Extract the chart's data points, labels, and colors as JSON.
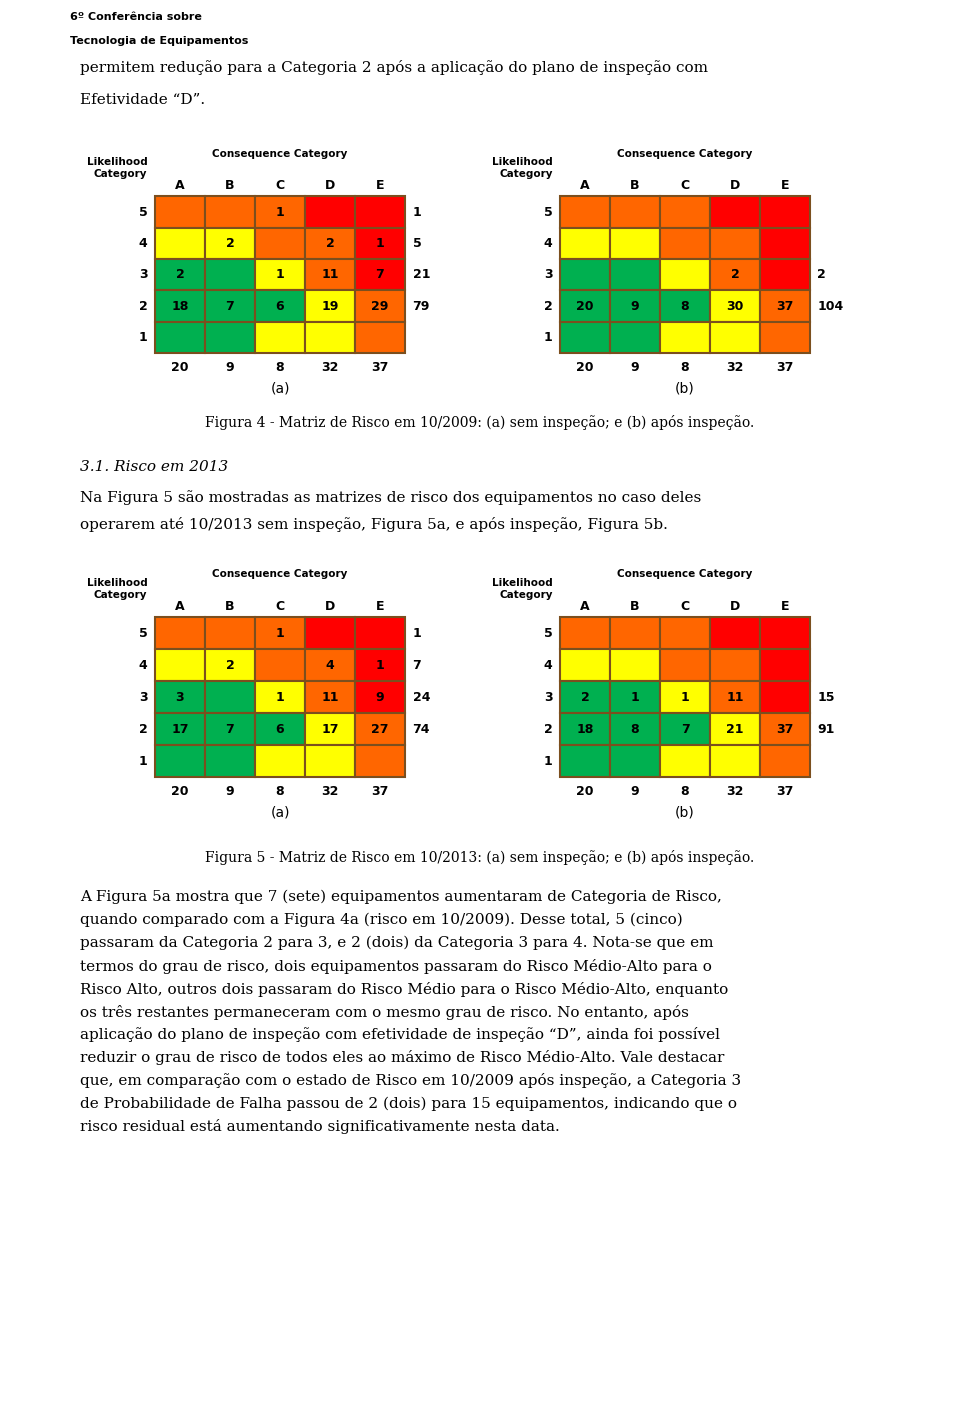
{
  "page_bg": "#ffffff",
  "header_logo_color": "#e07820",
  "header_text_line1": "6º Conferência sobre",
  "header_text_line2": "Tecnologia de Equipamentos",
  "intro_text": "permitem redução para a Categoria 2 após a aplicação do plano de inspeção com\nEfetividade “D”.",
  "section_title": "3.1. Risco em 2013",
  "section_body1": "Na Figura 5 são mostradas as matrizes de risco dos equipamentos no caso deles",
  "section_body2": "operarem até 10/2013 sem inspeção, Figura 5a, e após inspeção, Figura 5b.",
  "fig4_caption": "Figura 4 - Matriz de Risco em 10/2009: (a) sem inspeção; e (b) após inspeção.",
  "fig5_caption": "Figura 5 - Matriz de Risco em 10/2013: (a) sem inspeção; e (b) após inspeção.",
  "body_text_lines": [
    "A Figura 5a mostra que 7 (sete) equipamentos aumentaram de Categoria de Risco,",
    "quando comparado com a Figura 4a (risco em 10/2009). Desse total, 5 (cinco)",
    "passaram da Categoria 2 para 3, e 2 (dois) da Categoria 3 para 4. Nota-se que em",
    "termos do grau de risco, dois equipamentos passaram do Risco Médio-Alto para o",
    "Risco Alto, outros dois passaram do Risco Médio para o Risco Médio-Alto, enquanto",
    "os três restantes permaneceram com o mesmo grau de risco. No entanto, após",
    "aplicação do plano de inspeção com efetividade de inspeção “D”, ainda foi possível",
    "reduzir o grau de risco de todos eles ao máximo de Risco Médio-Alto. Vale destacar",
    "que, em comparação com o estado de Risco em 10/2009 após inspeção, a Categoria 3",
    "de Probabilidade de Falha passou de 2 (dois) para 15 equipamentos, indicando que o",
    "risco residual está aumentando significativamente nesta data."
  ],
  "colors": {
    "green": "#00b050",
    "yellow": "#ffff00",
    "orange": "#ff6600",
    "red": "#ff0000",
    "dark_orange": "#c55a11",
    "border": "#7b4f1e"
  },
  "fig4a": {
    "row_labels": [
      5,
      4,
      3,
      2,
      1
    ],
    "col_labels": [
      "A",
      "B",
      "C",
      "D",
      "E"
    ],
    "col_totals": [
      20,
      9,
      8,
      32,
      37
    ],
    "row_totals": [
      1,
      5,
      21,
      79,
      null
    ],
    "cell_colors": [
      [
        "orange",
        "orange",
        "orange",
        "red",
        "red"
      ],
      [
        "yellow",
        "yellow",
        "orange",
        "orange",
        "red"
      ],
      [
        "green",
        "green",
        "yellow",
        "orange",
        "red"
      ],
      [
        "green",
        "green",
        "green",
        "yellow",
        "orange"
      ],
      [
        "green",
        "green",
        "yellow",
        "yellow",
        "orange"
      ]
    ],
    "cell_values": [
      [
        "",
        "",
        "1",
        "",
        ""
      ],
      [
        "",
        "2",
        "",
        "2",
        "1"
      ],
      [
        "2",
        "",
        "1",
        "11",
        "7"
      ],
      [
        "18",
        "7",
        "6",
        "19",
        "29"
      ],
      [
        "",
        "",
        "",
        "",
        ""
      ]
    ]
  },
  "fig4b": {
    "row_labels": [
      5,
      4,
      3,
      2,
      1
    ],
    "col_labels": [
      "A",
      "B",
      "C",
      "D",
      "E"
    ],
    "col_totals": [
      20,
      9,
      8,
      32,
      37
    ],
    "row_totals": [
      null,
      null,
      2,
      104,
      null
    ],
    "cell_colors": [
      [
        "orange",
        "orange",
        "orange",
        "red",
        "red"
      ],
      [
        "yellow",
        "yellow",
        "orange",
        "orange",
        "red"
      ],
      [
        "green",
        "green",
        "yellow",
        "orange",
        "red"
      ],
      [
        "green",
        "green",
        "green",
        "yellow",
        "orange"
      ],
      [
        "green",
        "green",
        "yellow",
        "yellow",
        "orange"
      ]
    ],
    "cell_values": [
      [
        "",
        "",
        "",
        "",
        ""
      ],
      [
        "",
        "",
        "",
        "",
        ""
      ],
      [
        "",
        "",
        "",
        "2",
        ""
      ],
      [
        "20",
        "9",
        "8",
        "30",
        "37"
      ],
      [
        "",
        "",
        "",
        "",
        ""
      ]
    ]
  },
  "fig5a": {
    "row_labels": [
      5,
      4,
      3,
      2,
      1
    ],
    "col_labels": [
      "A",
      "B",
      "C",
      "D",
      "E"
    ],
    "col_totals": [
      20,
      9,
      8,
      32,
      37
    ],
    "row_totals": [
      1,
      7,
      24,
      74,
      null
    ],
    "cell_colors": [
      [
        "orange",
        "orange",
        "orange",
        "red",
        "red"
      ],
      [
        "yellow",
        "yellow",
        "orange",
        "orange",
        "red"
      ],
      [
        "green",
        "green",
        "yellow",
        "orange",
        "red"
      ],
      [
        "green",
        "green",
        "green",
        "yellow",
        "orange"
      ],
      [
        "green",
        "green",
        "yellow",
        "yellow",
        "orange"
      ]
    ],
    "cell_values": [
      [
        "",
        "",
        "1",
        "",
        ""
      ],
      [
        "",
        "2",
        "",
        "4",
        "1"
      ],
      [
        "3",
        "",
        "1",
        "11",
        "9"
      ],
      [
        "17",
        "7",
        "6",
        "17",
        "27"
      ],
      [
        "",
        "",
        "",
        "",
        ""
      ]
    ]
  },
  "fig5b": {
    "row_labels": [
      5,
      4,
      3,
      2,
      1
    ],
    "col_labels": [
      "A",
      "B",
      "C",
      "D",
      "E"
    ],
    "col_totals": [
      20,
      9,
      8,
      32,
      37
    ],
    "row_totals": [
      null,
      null,
      15,
      91,
      null
    ],
    "cell_colors": [
      [
        "orange",
        "orange",
        "orange",
        "red",
        "red"
      ],
      [
        "yellow",
        "yellow",
        "orange",
        "orange",
        "red"
      ],
      [
        "green",
        "green",
        "yellow",
        "orange",
        "red"
      ],
      [
        "green",
        "green",
        "green",
        "yellow",
        "orange"
      ],
      [
        "green",
        "green",
        "yellow",
        "yellow",
        "orange"
      ]
    ],
    "cell_values": [
      [
        "",
        "",
        "",
        "",
        ""
      ],
      [
        "",
        "",
        "",
        "",
        ""
      ],
      [
        "2",
        "1",
        "1",
        "11",
        ""
      ],
      [
        "18",
        "8",
        "7",
        "21",
        "37"
      ],
      [
        "",
        "",
        "",
        "",
        ""
      ]
    ]
  }
}
